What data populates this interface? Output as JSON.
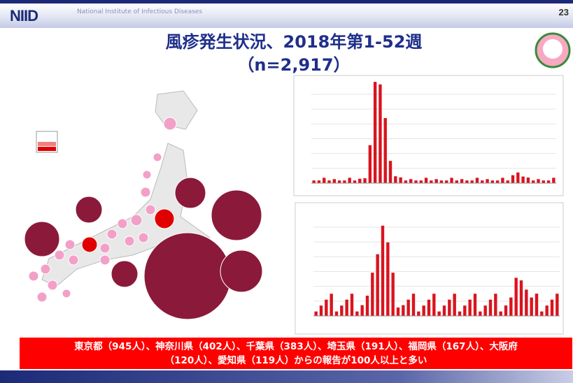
{
  "header": {
    "logo": "NIID",
    "organization": "National Institute of Infectious Diseases",
    "slide_number": "23"
  },
  "title": {
    "line1": "風疹発生状況、2018年第1-52週",
    "line2": "（n=2,917）"
  },
  "banner": {
    "line1": "東京都（945人）、神奈川県（402人）、千葉県（383人）、埼玉県（191人）、福岡県（167人）、大阪府",
    "line2": "（120人）、愛知県（119人）からの報告が100人以上と多い"
  }
}
